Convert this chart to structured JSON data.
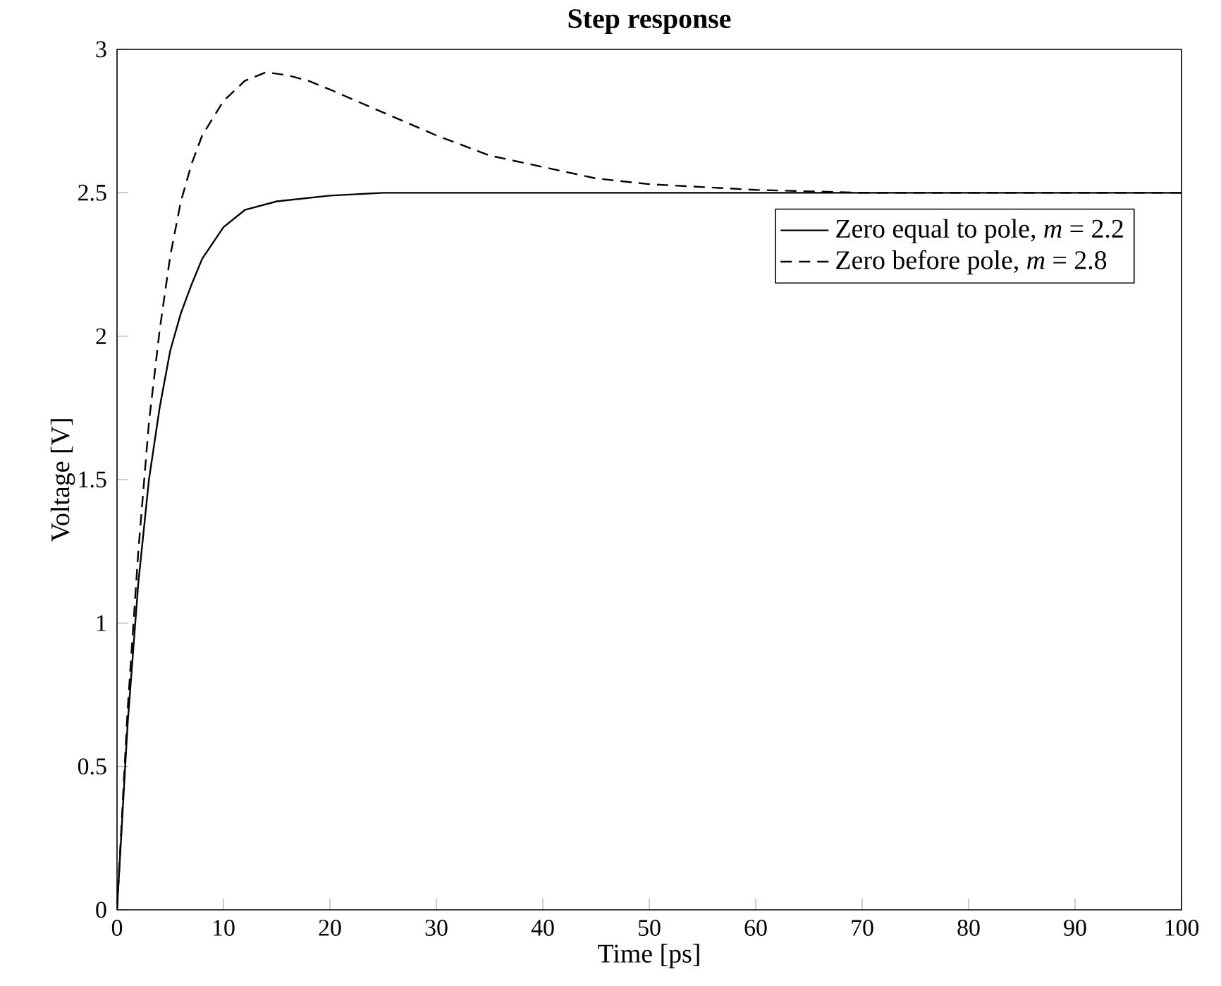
{
  "chart_data": {
    "type": "line",
    "title": "Step response",
    "xlabel": "Time [ps]",
    "ylabel": "Voltage [V]",
    "xlim": [
      0,
      100
    ],
    "ylim": [
      0,
      3
    ],
    "xticks": [
      0,
      10,
      20,
      30,
      40,
      50,
      60,
      70,
      80,
      90,
      100
    ],
    "yticks": [
      0,
      0.5,
      1,
      1.5,
      2,
      2.5,
      3
    ],
    "legend": "top right",
    "grid": false,
    "series": [
      {
        "name": "Zero equal to pole, *m* = 2.2",
        "color": "#000000",
        "line_style": "solid",
        "x": [
          0,
          1,
          2,
          3,
          4,
          5,
          6,
          7,
          8,
          10,
          12,
          15,
          20,
          25,
          100
        ],
        "values": [
          0,
          0.65,
          1.14,
          1.5,
          1.75,
          1.95,
          2.08,
          2.18,
          2.27,
          2.38,
          2.44,
          2.47,
          2.49,
          2.5,
          2.5
        ]
      },
      {
        "name": "Zero before pole, *m* = 2.8",
        "color": "#000000",
        "line_style": "dashed",
        "x": [
          0,
          1,
          2,
          3,
          4,
          5,
          6,
          7,
          8,
          10,
          12,
          14,
          16,
          18,
          20,
          25,
          30,
          35,
          40,
          45,
          50,
          55,
          60,
          70,
          100
        ],
        "values": [
          0,
          0.7,
          1.25,
          1.7,
          2.02,
          2.28,
          2.47,
          2.6,
          2.7,
          2.82,
          2.89,
          2.92,
          2.91,
          2.89,
          2.86,
          2.78,
          2.7,
          2.63,
          2.59,
          2.55,
          2.53,
          2.52,
          2.51,
          2.5,
          2.5
        ]
      }
    ]
  }
}
